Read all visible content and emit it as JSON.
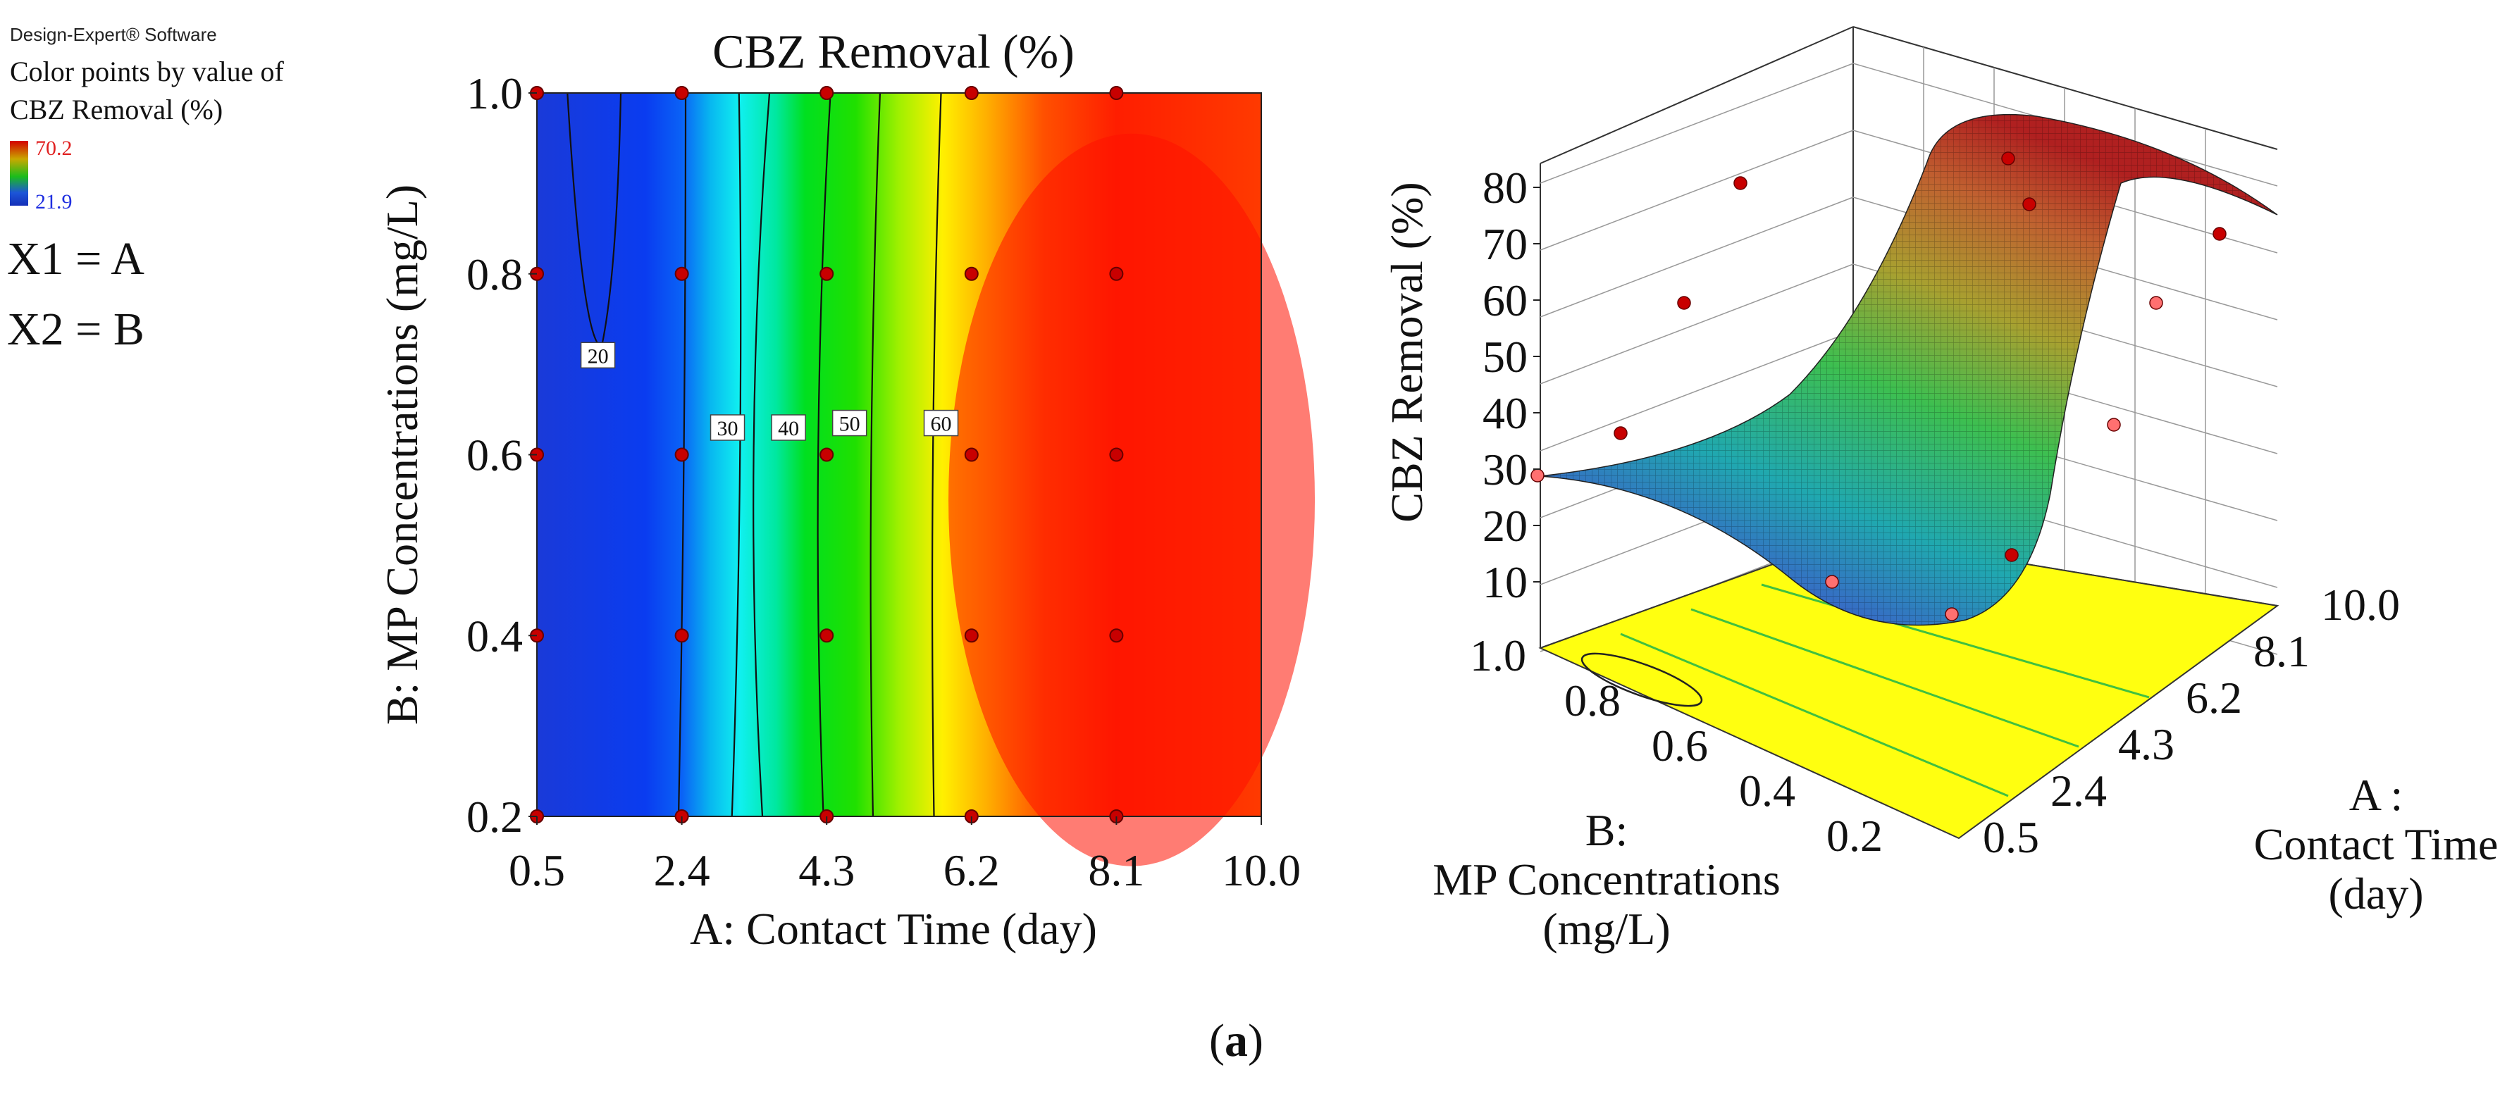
{
  "legend": {
    "software": "Design-Expert® Software",
    "line1": "Color points by value of",
    "line2": "CBZ Removal (%)",
    "max": "70.2",
    "min": "21.9",
    "x1": "X1 = A",
    "x2": "X2 = B"
  },
  "caption": {
    "open": "(",
    "letter": "a",
    "close": ")"
  },
  "colors": {
    "low": "#1530b8",
    "mid": "#00e000",
    "high": "#ff1400",
    "yellow": "#ffff10",
    "point": "#c80000"
  },
  "chart_data": [
    {
      "type": "contour",
      "title": "CBZ Removal (%)",
      "xlabel": "A: Contact Time (day)",
      "ylabel": "B: MP Concentrations (mg/L)",
      "xlim": [
        0.5,
        10.0
      ],
      "ylim": [
        0.2,
        1.0
      ],
      "xticks": [
        "0.5",
        "2.4",
        "4.3",
        "6.2",
        "8.1",
        "10.0"
      ],
      "yticks": [
        "0.2",
        "0.4",
        "0.6",
        "0.8",
        "1.0"
      ],
      "contour_levels": [
        {
          "label": "20",
          "x": 1.3,
          "y": 0.71
        },
        {
          "label": "30",
          "x": 3.0,
          "y": 0.63
        },
        {
          "label": "40",
          "x": 3.8,
          "y": 0.63
        },
        {
          "label": "50",
          "x": 4.6,
          "y": 0.635
        },
        {
          "label": "60",
          "x": 5.8,
          "y": 0.635
        }
      ],
      "design_points": [
        {
          "x": 0.5,
          "y": 1.0
        },
        {
          "x": 2.4,
          "y": 1.0
        },
        {
          "x": 4.3,
          "y": 1.0
        },
        {
          "x": 6.2,
          "y": 1.0
        },
        {
          "x": 8.1,
          "y": 1.0
        },
        {
          "x": 0.5,
          "y": 0.8
        },
        {
          "x": 2.4,
          "y": 0.8
        },
        {
          "x": 4.3,
          "y": 0.8
        },
        {
          "x": 6.2,
          "y": 0.8
        },
        {
          "x": 8.1,
          "y": 0.8
        },
        {
          "x": 0.5,
          "y": 0.6
        },
        {
          "x": 2.4,
          "y": 0.6
        },
        {
          "x": 4.3,
          "y": 0.6
        },
        {
          "x": 6.2,
          "y": 0.6
        },
        {
          "x": 8.1,
          "y": 0.6
        },
        {
          "x": 0.5,
          "y": 0.4
        },
        {
          "x": 2.4,
          "y": 0.4
        },
        {
          "x": 4.3,
          "y": 0.4
        },
        {
          "x": 6.2,
          "y": 0.4
        },
        {
          "x": 8.1,
          "y": 0.4
        },
        {
          "x": 0.5,
          "y": 0.2
        },
        {
          "x": 2.4,
          "y": 0.2
        },
        {
          "x": 4.3,
          "y": 0.2
        },
        {
          "x": 6.2,
          "y": 0.2
        },
        {
          "x": 8.1,
          "y": 0.2
        }
      ]
    },
    {
      "type": "surface3d",
      "zlabel": "CBZ Removal (%)",
      "zticks": [
        "10",
        "20",
        "30",
        "40",
        "50",
        "60",
        "70",
        "80"
      ],
      "zlim": [
        10,
        80
      ],
      "a_label": "A :",
      "a_label_l2": "Contact Time",
      "a_label_l3": "(day)",
      "a_ticks": [
        "0.5",
        "2.4",
        "4.3",
        "6.2",
        "8.1",
        "10.0"
      ],
      "b_label": "B:",
      "b_label_l2": "MP Concentrations",
      "b_label_l3": "(mg/L)",
      "b_ticks": [
        "1.0",
        "0.8",
        "0.6",
        "0.4",
        "0.2"
      ]
    }
  ]
}
